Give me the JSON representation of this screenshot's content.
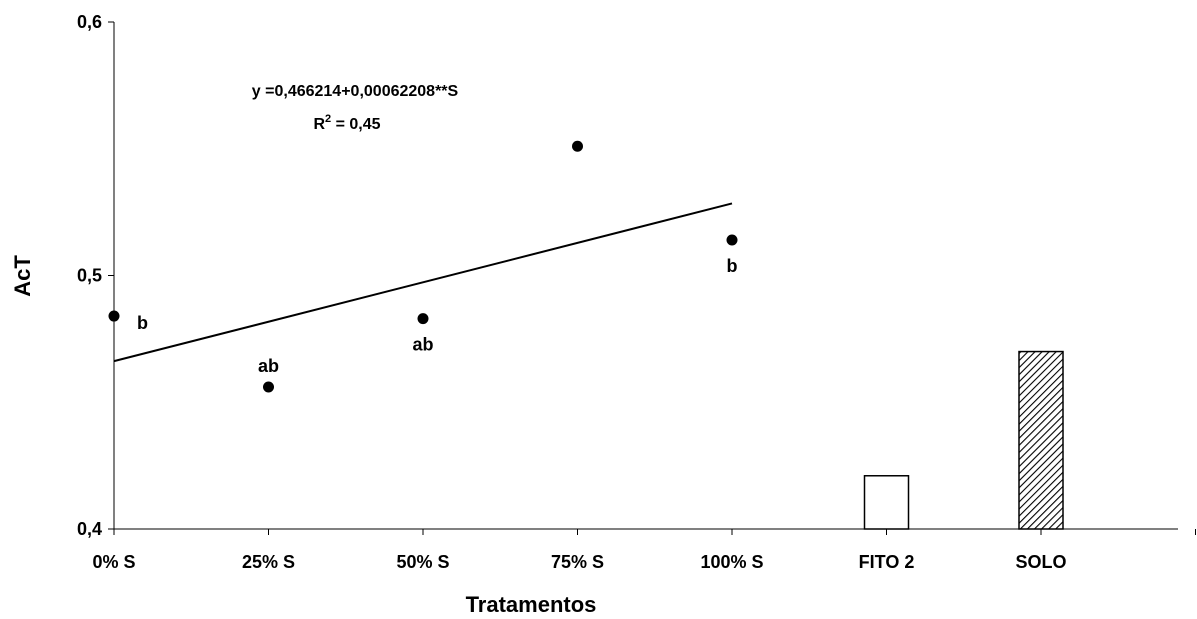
{
  "chart_data": {
    "type": "scatter",
    "title": "",
    "xlabel": "Tratamentos",
    "ylabel": "AcT",
    "ylim": [
      0.4,
      0.6
    ],
    "yticks": [
      {
        "value": 0.4,
        "label": "0,4"
      },
      {
        "value": 0.5,
        "label": "0,5"
      },
      {
        "value": 0.6,
        "label": "0,6"
      }
    ],
    "categories": [
      "0% S",
      "25% S",
      "50% S",
      "75% S",
      "100% S",
      "FITO 2",
      "SOLO"
    ],
    "grid": false,
    "points": [
      {
        "category": "0% S",
        "x": 0,
        "y": 0.484,
        "letter": "b",
        "letter_pos": "right"
      },
      {
        "category": "25% S",
        "x": 25,
        "y": 0.456,
        "letter": "ab",
        "letter_pos": "above"
      },
      {
        "category": "50% S",
        "x": 50,
        "y": 0.483,
        "letter": "ab",
        "letter_pos": "below"
      },
      {
        "category": "75% S",
        "x": 75,
        "y": 0.551,
        "letter": "",
        "letter_pos": "none"
      },
      {
        "category": "100% S",
        "x": 100,
        "y": 0.514,
        "letter": "b",
        "letter_pos": "below"
      }
    ],
    "bars": [
      {
        "category": "FITO 2",
        "value": 0.421,
        "pattern": "empty",
        "color": "#ffffff"
      },
      {
        "category": "SOLO",
        "value": 0.47,
        "pattern": "hatched",
        "color": "#ffffff"
      }
    ],
    "regression": {
      "intercept": 0.466214,
      "slope": 0.00062208,
      "x_start": 0,
      "x_end": 100,
      "equation": "y =0,466214+0,00062208**S",
      "r2_prefix": "R",
      "r2_sup": "2",
      "r2_value": " = 0,45"
    },
    "colors": {
      "point": "#000000",
      "line": "#000000",
      "axis": "#000000"
    }
  }
}
